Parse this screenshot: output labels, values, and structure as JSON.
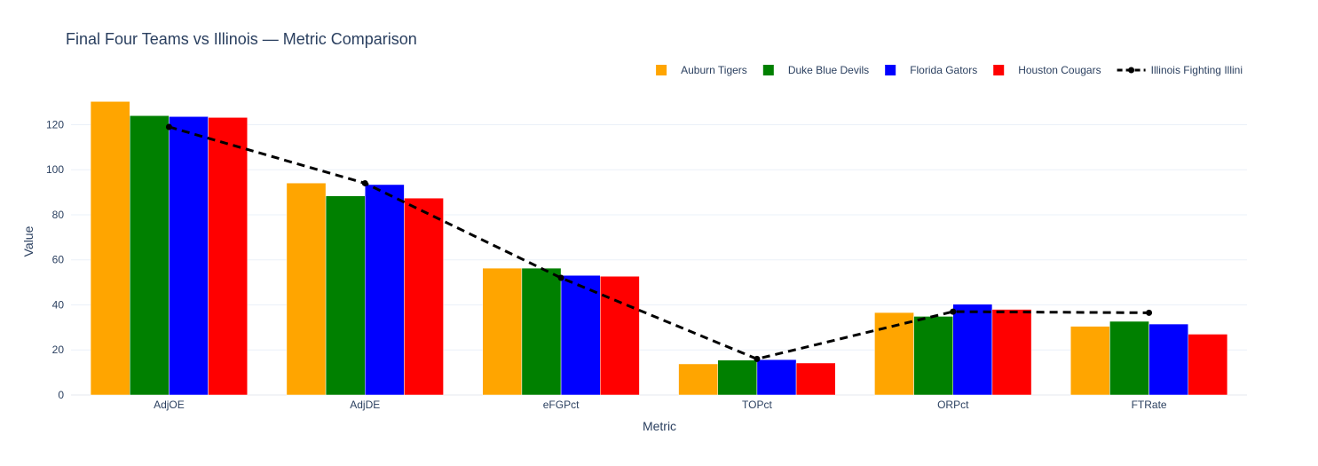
{
  "chart_data": {
    "type": "bar",
    "title": "Final Four Teams vs Illinois — Metric Comparison",
    "xlabel": "Metric",
    "ylabel": "Value",
    "ylim": [
      0,
      132
    ],
    "yticks": [
      0,
      20,
      40,
      60,
      80,
      100,
      120
    ],
    "grid": true,
    "legend_position": "top-right",
    "categories": [
      "AdjOE",
      "AdjDE",
      "eFGPct",
      "TOPct",
      "ORPct",
      "FTRate"
    ],
    "series": [
      {
        "name": "Auburn Tigers",
        "type": "bar",
        "color": "#FFA500",
        "values": [
          130.3,
          94.1,
          56.3,
          13.8,
          36.6,
          30.5
        ]
      },
      {
        "name": "Duke Blue Devils",
        "type": "bar",
        "color": "#008000",
        "values": [
          124.0,
          88.4,
          56.3,
          15.5,
          34.9,
          32.7
        ]
      },
      {
        "name": "Florida Gators",
        "type": "bar",
        "color": "#0000FF",
        "values": [
          123.6,
          93.4,
          53.1,
          15.7,
          40.3,
          31.5
        ]
      },
      {
        "name": "Houston Cougars",
        "type": "bar",
        "color": "#FF0000",
        "values": [
          123.2,
          87.4,
          52.7,
          14.2,
          38.0,
          27.0
        ]
      },
      {
        "name": "Illinois Fighting Illini",
        "type": "line",
        "color": "#000000",
        "dash": "dash",
        "values": [
          119.0,
          94.0,
          52.0,
          16.0,
          37.0,
          36.5
        ]
      }
    ]
  }
}
